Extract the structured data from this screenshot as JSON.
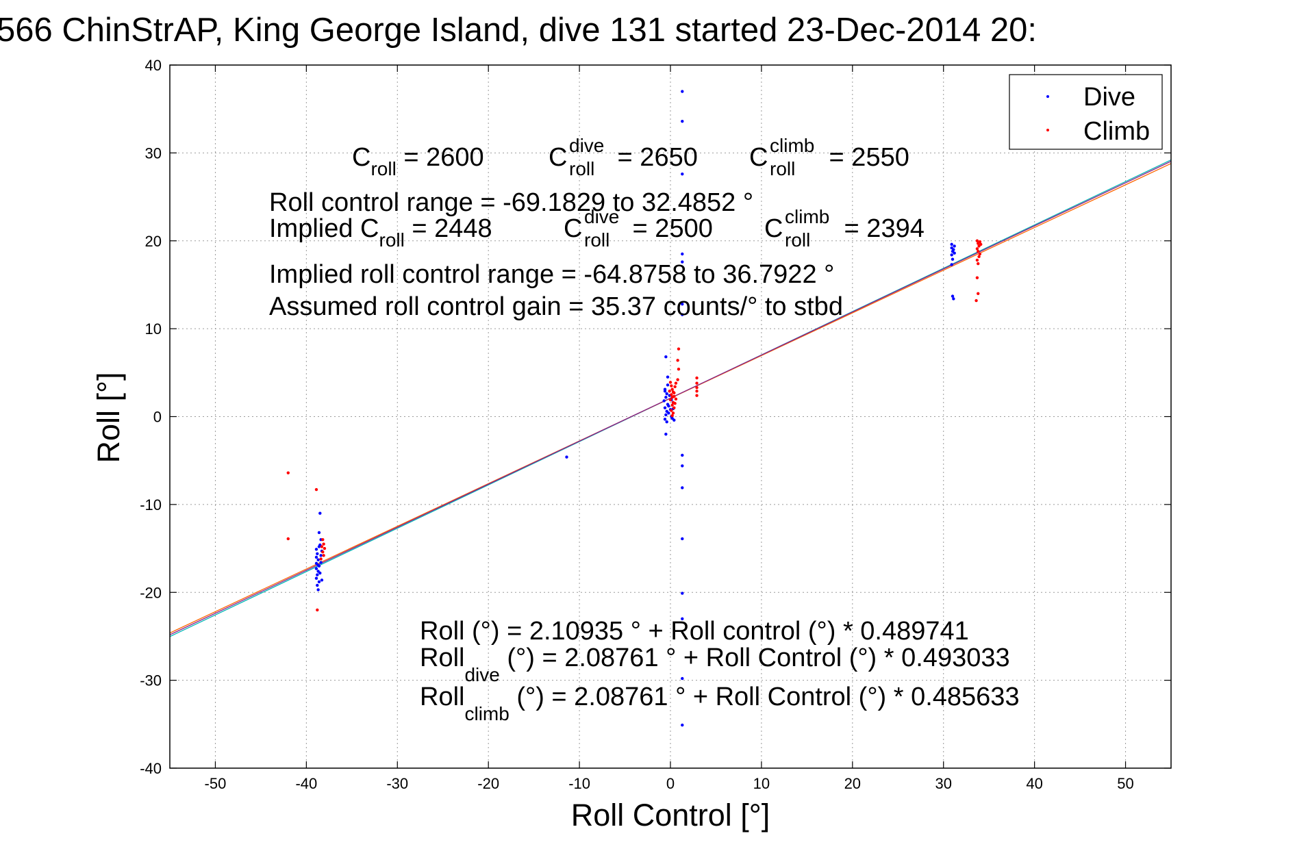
{
  "chart_data": {
    "type": "scatter",
    "title": "566 ChinStrAP, King George Island, dive 131 started 23-Dec-2014 20:",
    "xlabel": "Roll Control [°]",
    "ylabel": "Roll [°]",
    "xlim": [
      -55,
      55
    ],
    "ylim": [
      -40,
      40
    ],
    "xticks": [
      -50,
      -40,
      -30,
      -20,
      -10,
      0,
      10,
      20,
      30,
      40,
      50
    ],
    "yticks": [
      -40,
      -30,
      -20,
      -10,
      0,
      10,
      20,
      30,
      40
    ],
    "grid": true,
    "legend_position": "top-right",
    "series": [
      {
        "name": "Dive",
        "color": "#0000ff",
        "points": [
          [
            -38.9,
            -15.1
          ],
          [
            -38.8,
            -15.6
          ],
          [
            -38.9,
            -16.0
          ],
          [
            -38.7,
            -16.3
          ],
          [
            -38.9,
            -16.7
          ],
          [
            -38.6,
            -17.0
          ],
          [
            -38.9,
            -17.3
          ],
          [
            -38.7,
            -17.6
          ],
          [
            -38.8,
            -18.0
          ],
          [
            -38.9,
            -18.4
          ],
          [
            -38.6,
            -18.8
          ],
          [
            -38.8,
            -19.2
          ],
          [
            -38.7,
            -19.7
          ],
          [
            -38.5,
            -11.0
          ],
          [
            -38.6,
            -13.2
          ],
          [
            -38.4,
            -14.0
          ],
          [
            -38.5,
            -14.6
          ],
          [
            -38.3,
            -15.3
          ],
          [
            -38.4,
            -16.6
          ],
          [
            -38.5,
            -17.8
          ],
          [
            -38.3,
            -18.6
          ],
          [
            -38.4,
            -15.8
          ],
          [
            -38.6,
            -14.8
          ],
          [
            -38.7,
            -16.9
          ],
          [
            -11.4,
            -4.6
          ],
          [
            -0.5,
            6.8
          ],
          [
            -0.3,
            4.5
          ],
          [
            -0.6,
            3.1
          ],
          [
            -0.4,
            2.6
          ],
          [
            -0.5,
            2.2
          ],
          [
            -0.7,
            1.8
          ],
          [
            -0.3,
            1.4
          ],
          [
            -0.6,
            1.0
          ],
          [
            -0.4,
            0.6
          ],
          [
            -0.5,
            0.2
          ],
          [
            -0.6,
            -0.3
          ],
          [
            -0.4,
            -0.6
          ],
          [
            -0.5,
            -2.0
          ],
          [
            -0.2,
            1.2
          ],
          [
            -0.1,
            2.4
          ],
          [
            0.0,
            0.8
          ],
          [
            -0.3,
            3.6
          ],
          [
            -0.6,
            2.9
          ],
          [
            0.1,
            1.9
          ],
          [
            -0.2,
            0.4
          ],
          [
            0.2,
            -0.2
          ],
          [
            0.3,
            1.6
          ],
          [
            0.1,
            0.0
          ],
          [
            0.4,
            -0.4
          ],
          [
            0.2,
            2.2
          ],
          [
            0.3,
            0.9
          ],
          [
            1.3,
            37.0
          ],
          [
            1.3,
            33.6
          ],
          [
            1.3,
            27.6
          ],
          [
            1.3,
            18.5
          ],
          [
            1.3,
            17.6
          ],
          [
            1.3,
            12.8
          ],
          [
            1.3,
            11.6
          ],
          [
            1.3,
            -4.4
          ],
          [
            1.3,
            -5.6
          ],
          [
            1.3,
            -8.1
          ],
          [
            1.3,
            -13.9
          ],
          [
            1.3,
            -20.1
          ],
          [
            1.3,
            -23.0
          ],
          [
            1.3,
            -29.8
          ],
          [
            1.3,
            -35.1
          ],
          [
            30.9,
            19.6
          ],
          [
            30.9,
            19.2
          ],
          [
            31.0,
            18.8
          ],
          [
            30.9,
            18.4
          ],
          [
            31.0,
            17.9
          ],
          [
            30.9,
            17.3
          ],
          [
            31.1,
            19.0
          ],
          [
            31.2,
            18.6
          ],
          [
            31.0,
            13.7
          ],
          [
            31.1,
            13.4
          ],
          [
            31.2,
            19.4
          ]
        ]
      },
      {
        "name": "Climb",
        "color": "#ff0000",
        "points": [
          [
            -42.0,
            -6.4
          ],
          [
            -42.0,
            -13.9
          ],
          [
            -38.9,
            -8.3
          ],
          [
            -38.8,
            -22.0
          ],
          [
            -38.2,
            -14.0
          ],
          [
            -38.1,
            -14.5
          ],
          [
            -38.0,
            -15.0
          ],
          [
            -38.2,
            -15.4
          ],
          [
            -38.1,
            -15.8
          ],
          [
            -38.3,
            -14.8
          ],
          [
            -38.4,
            -16.2
          ],
          [
            0.0,
            3.9
          ],
          [
            0.1,
            3.5
          ],
          [
            0.2,
            3.1
          ],
          [
            0.3,
            2.8
          ],
          [
            0.1,
            2.5
          ],
          [
            0.2,
            2.2
          ],
          [
            0.0,
            1.9
          ],
          [
            0.3,
            1.6
          ],
          [
            0.2,
            1.3
          ],
          [
            0.4,
            1.0
          ],
          [
            0.1,
            0.7
          ],
          [
            0.3,
            0.4
          ],
          [
            0.2,
            0.1
          ],
          [
            0.4,
            2.7
          ],
          [
            0.5,
            3.4
          ],
          [
            0.6,
            2.0
          ],
          [
            0.5,
            1.5
          ],
          [
            -0.1,
            2.9
          ],
          [
            0.6,
            3.8
          ],
          [
            0.4,
            2.3
          ],
          [
            0.9,
            7.7
          ],
          [
            0.8,
            6.4
          ],
          [
            0.9,
            5.4
          ],
          [
            0.8,
            4.2
          ],
          [
            2.9,
            4.4
          ],
          [
            2.9,
            3.8
          ],
          [
            2.9,
            3.3
          ],
          [
            2.9,
            2.9
          ],
          [
            2.9,
            2.4
          ],
          [
            33.7,
            20.0
          ],
          [
            33.8,
            19.7
          ],
          [
            33.9,
            19.4
          ],
          [
            33.7,
            19.1
          ],
          [
            33.8,
            18.8
          ],
          [
            34.0,
            18.5
          ],
          [
            33.9,
            18.2
          ],
          [
            33.7,
            17.8
          ],
          [
            33.8,
            17.4
          ],
          [
            34.1,
            19.6
          ],
          [
            34.0,
            19.9
          ],
          [
            33.7,
            15.8
          ],
          [
            33.8,
            14.0
          ],
          [
            33.6,
            13.2
          ]
        ]
      }
    ],
    "fit_lines": [
      {
        "name": "overall",
        "color": "#8a1f8a",
        "intercept": 2.10935,
        "slope": 0.489741
      },
      {
        "name": "dive",
        "color": "#00b4b4",
        "intercept": 2.08761,
        "slope": 0.493033
      },
      {
        "name": "climb",
        "color": "#ff6600",
        "intercept": 2.08761,
        "slope": 0.485633
      }
    ]
  },
  "annotations": {
    "c_roll": {
      "base": "C",
      "sub": "roll",
      "rest": " = 2600"
    },
    "c_roll_dive": {
      "base": "C",
      "sup": "dive",
      "sub": "roll",
      "rest": " = 2650"
    },
    "c_roll_climb": {
      "base": "C",
      "sup": "climb",
      "sub": "roll",
      "rest": " = 2550"
    },
    "range": "Roll control range = -69.1829 to 32.4852 °",
    "implied_c_roll": {
      "base": "Implied C",
      "sub": "roll",
      "rest": " = 2448"
    },
    "implied_c_roll_dive": {
      "base": "C",
      "sup": "dive",
      "sub": "roll",
      "rest": " = 2500"
    },
    "implied_c_roll_climb": {
      "base": "C",
      "sup": "climb",
      "sub": "roll",
      "rest": " = 2394"
    },
    "implied_range": "Implied roll control range = -64.8758 to 36.7922 °",
    "gain": "Assumed roll control gain = 35.37 counts/° to stbd",
    "fit_overall": "Roll (°) = 2.10935 ° + Roll control (°) * 0.489741",
    "fit_dive": {
      "base": "Roll",
      "sub": "dive",
      "rest": " (°) = 2.08761 ° + Roll Control (°) * 0.493033"
    },
    "fit_climb": {
      "base": "Roll",
      "sub": "climb",
      "rest": " (°) = 2.08761 ° + Roll Control (°) * 0.485633"
    }
  }
}
